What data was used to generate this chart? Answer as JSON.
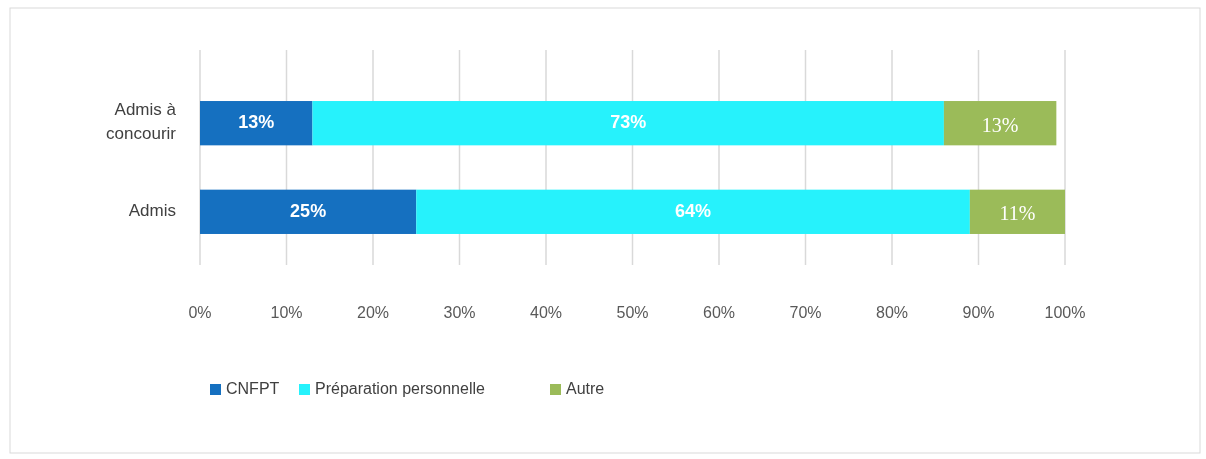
{
  "chart_data": {
    "type": "bar",
    "orientation": "horizontal",
    "stacked": true,
    "categories": [
      "Admis à concourir",
      "Admis"
    ],
    "series": [
      {
        "name": "CNFPT",
        "color": "#1570c0",
        "values": [
          13,
          25
        ],
        "value_labels": [
          "13%",
          "25%"
        ]
      },
      {
        "name": "Préparation personnelle",
        "color": "#26f2fc",
        "values": [
          73,
          64
        ],
        "value_labels": [
          "73%",
          "64%"
        ]
      },
      {
        "name": "Autre",
        "color": "#9bbb59",
        "values": [
          13,
          11
        ],
        "value_labels": [
          "13%",
          "11%"
        ]
      }
    ],
    "xlim": [
      0,
      100
    ],
    "xticks": [
      {
        "value": 0,
        "label": "0%"
      },
      {
        "value": 10,
        "label": "10%"
      },
      {
        "value": 20,
        "label": "20%"
      },
      {
        "value": 30,
        "label": "30%"
      },
      {
        "value": 40,
        "label": "40%"
      },
      {
        "value": 50,
        "label": "50%"
      },
      {
        "value": 60,
        "label": "60%"
      },
      {
        "value": 70,
        "label": "70%"
      },
      {
        "value": 80,
        "label": "80%"
      },
      {
        "value": 90,
        "label": "90%"
      },
      {
        "value": 100,
        "label": "100%"
      }
    ],
    "grid": "x",
    "legend": "bottom"
  }
}
